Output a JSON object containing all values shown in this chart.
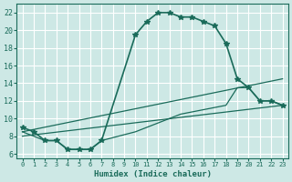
{
  "xlabel": "Humidex (Indice chaleur)",
  "bg_color": "#cde8e5",
  "grid_color": "#ffffff",
  "line_color": "#1a6b5a",
  "line1_x": [
    0,
    1,
    2,
    3,
    4,
    5,
    6,
    7,
    10,
    11,
    12,
    13,
    14,
    15,
    16,
    17,
    18,
    19,
    20,
    21,
    22,
    23
  ],
  "line1_y": [
    9.0,
    8.5,
    7.5,
    7.5,
    6.5,
    6.5,
    6.5,
    7.5,
    19.5,
    21.0,
    22.0,
    22.0,
    21.5,
    21.5,
    21.0,
    20.5,
    18.5,
    14.5,
    13.5,
    12.0,
    12.0,
    11.5
  ],
  "line2_x": [
    0,
    2,
    3,
    4,
    5,
    6,
    7,
    10,
    14,
    18,
    19,
    20,
    21,
    22,
    23
  ],
  "line2_y": [
    8.5,
    7.5,
    7.5,
    6.5,
    6.5,
    6.5,
    7.5,
    8.5,
    10.5,
    11.5,
    13.5,
    13.5,
    12.0,
    12.0,
    11.5
  ],
  "line3_x": [
    0,
    23
  ],
  "line3_y": [
    8.0,
    11.5
  ],
  "line4_x": [
    0,
    23
  ],
  "line4_y": [
    8.5,
    14.5
  ],
  "xlim": [
    -0.5,
    23.5
  ],
  "ylim": [
    5.5,
    23.0
  ],
  "yticks": [
    6,
    8,
    10,
    12,
    14,
    16,
    18,
    20,
    22
  ],
  "xticks": [
    0,
    1,
    2,
    3,
    4,
    5,
    6,
    7,
    8,
    9,
    10,
    11,
    12,
    13,
    14,
    15,
    16,
    17,
    18,
    19,
    20,
    21,
    22,
    23
  ],
  "xlabel_fontsize": 6.5,
  "tick_fontsize_x": 5.0,
  "tick_fontsize_y": 6.0
}
